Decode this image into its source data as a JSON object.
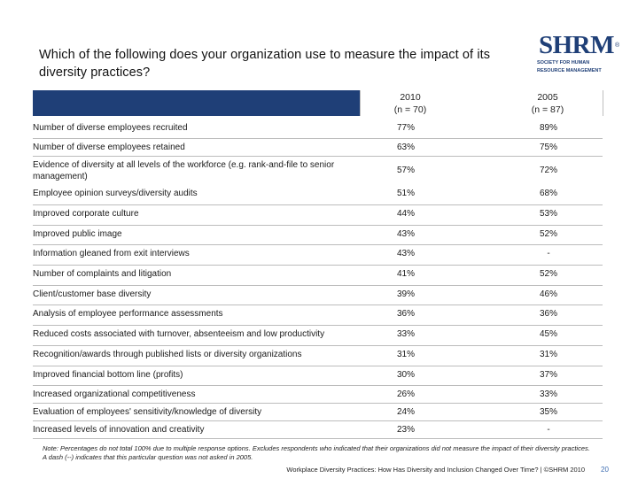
{
  "title": "Which of the following does your organization use to measure the impact of its diversity practices?",
  "logo": {
    "text": "SHRM",
    "registered": "®",
    "sub_lines": [
      "SOCIETY FOR HUMAN",
      "RESOURCE MANAGEMENT"
    ],
    "color": "#1f3f77"
  },
  "columns": [
    {
      "year": "2010",
      "n": "(n = 70)"
    },
    {
      "year": "2005",
      "n": "(n = 87)"
    }
  ],
  "rows": [
    {
      "label": "Number of diverse employees recruited",
      "v2010": "77%",
      "v2005": "89%"
    },
    {
      "label": "Number of diverse employees retained",
      "v2010": "63%",
      "v2005": "75%"
    },
    {
      "label": "Evidence of diversity at all levels of the workforce (e.g. rank-and-file to senior management)",
      "v2010": "57%",
      "v2005": "72%"
    },
    {
      "label": "Employee opinion surveys/diversity audits",
      "v2010": "51%",
      "v2005": "68%"
    },
    {
      "label": "Improved corporate culture",
      "v2010": "44%",
      "v2005": "53%"
    },
    {
      "label": "Improved public image",
      "v2010": "43%",
      "v2005": "52%"
    },
    {
      "label": "Information gleaned from exit interviews",
      "v2010": "43%",
      "v2005": "-"
    },
    {
      "label": "Number of complaints and litigation",
      "v2010": "41%",
      "v2005": "52%"
    },
    {
      "label": "Client/customer base diversity",
      "v2010": "39%",
      "v2005": "46%"
    },
    {
      "label": "Analysis of employee performance assessments",
      "v2010": "36%",
      "v2005": "36%"
    },
    {
      "label": "Reduced costs associated with turnover, absenteeism and low productivity",
      "v2010": "33%",
      "v2005": "45%"
    },
    {
      "label": "Recognition/awards through published lists or diversity organizations",
      "v2010": "31%",
      "v2005": "31%"
    },
    {
      "label": "Improved financial bottom line (profits)",
      "v2010": "30%",
      "v2005": "37%"
    },
    {
      "label": "Increased organizational competitiveness",
      "v2010": "26%",
      "v2005": "33%"
    },
    {
      "label": "Evaluation of employees' sensitivity/knowledge of diversity",
      "v2010": "24%",
      "v2005": "35%"
    },
    {
      "label": "Increased levels of innovation and creativity",
      "v2010": "23%",
      "v2005": "-"
    }
  ],
  "note": "Note: Percentages do not total 100% due to multiple response options. Excludes respondents who indicated that their organizations did not measure the impact of their diversity practices. A dash (--) indicates that this particular question was not asked in 2005.",
  "footer": "Workplace Diversity Practices: How Has Diversity and Inclusion Changed Over Time? | ©SHRM 2010",
  "page_number": "20",
  "colors": {
    "header_bar": "#1f3f77",
    "page_number": "#3a6bb0"
  }
}
